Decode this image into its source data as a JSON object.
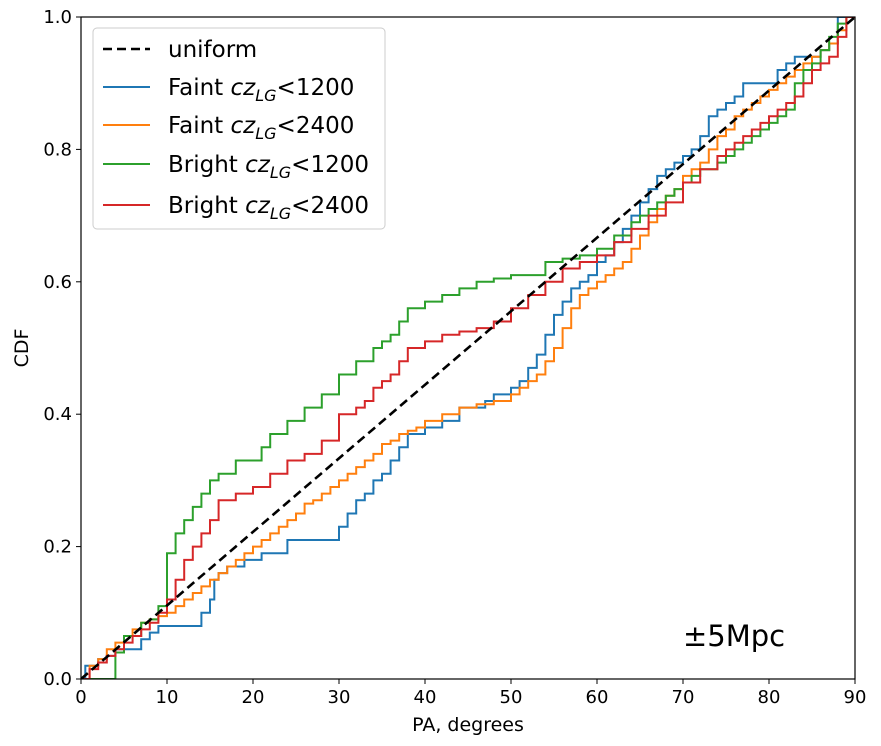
{
  "chart_data": {
    "type": "line",
    "step": true,
    "xlabel": "PA, degrees",
    "ylabel": "CDF",
    "xlim": [
      0,
      90
    ],
    "ylim": [
      0,
      1
    ],
    "xticks": [
      "0",
      "10",
      "20",
      "30",
      "40",
      "50",
      "60",
      "70",
      "80",
      "90"
    ],
    "yticks": [
      "0.0",
      "0.2",
      "0.4",
      "0.6",
      "0.8",
      "1.0"
    ],
    "grid": false,
    "legend_position": "top-left",
    "annotation": "±5Mpc",
    "reference": {
      "name": "uniform",
      "color": "#000000",
      "dashed": true,
      "x": [
        0,
        90
      ],
      "y": [
        0,
        1
      ]
    },
    "series": [
      {
        "name_prefix": "Faint ",
        "name_var": "cz",
        "name_sub": "LG",
        "name_suffix": "<1200",
        "color": "#1f77b4",
        "x": [
          0,
          0.5,
          1,
          2,
          3,
          4,
          5,
          7,
          8,
          9,
          10,
          11,
          12,
          13,
          14,
          15,
          15.5,
          16,
          17,
          19,
          21,
          24,
          25,
          28,
          30,
          31,
          32,
          33,
          34,
          35,
          36,
          37,
          38,
          40,
          42,
          44,
          47,
          48,
          50,
          51,
          52,
          53,
          54,
          55,
          56,
          57,
          58,
          59,
          60,
          61,
          62,
          63,
          64,
          65,
          66,
          67,
          68,
          69,
          70,
          71,
          72,
          73,
          74,
          75,
          76,
          77,
          78,
          79,
          80,
          81,
          82,
          83,
          84,
          86,
          87,
          88,
          89
        ],
        "y": [
          0,
          0.02,
          0.02,
          0.03,
          0.035,
          0.045,
          0.045,
          0.06,
          0.07,
          0.08,
          0.08,
          0.08,
          0.08,
          0.08,
          0.1,
          0.12,
          0.15,
          0.16,
          0.17,
          0.18,
          0.19,
          0.21,
          0.21,
          0.21,
          0.23,
          0.25,
          0.27,
          0.28,
          0.3,
          0.31,
          0.33,
          0.35,
          0.37,
          0.38,
          0.39,
          0.41,
          0.42,
          0.43,
          0.44,
          0.45,
          0.47,
          0.49,
          0.52,
          0.55,
          0.57,
          0.59,
          0.6,
          0.61,
          0.63,
          0.64,
          0.66,
          0.68,
          0.7,
          0.72,
          0.74,
          0.76,
          0.77,
          0.78,
          0.79,
          0.8,
          0.82,
          0.85,
          0.86,
          0.87,
          0.88,
          0.9,
          0.9,
          0.9,
          0.9,
          0.92,
          0.93,
          0.94,
          0.94,
          0.95,
          0.96,
          1.0,
          1.0
        ]
      },
      {
        "name_prefix": "Faint ",
        "name_var": "cz",
        "name_sub": "LG",
        "name_suffix": "<2400",
        "color": "#ff7f0e",
        "x": [
          0,
          1,
          2,
          3,
          4,
          5,
          6,
          7,
          8,
          9,
          10,
          11,
          12,
          13,
          14,
          15,
          16,
          17,
          18,
          19,
          20,
          21,
          22,
          23,
          24,
          25,
          26,
          27,
          28,
          29,
          30,
          31,
          32,
          33,
          34,
          35,
          36,
          37,
          38,
          39,
          40,
          42,
          44,
          46,
          48,
          50,
          51,
          52,
          53,
          54,
          55,
          56,
          57,
          58,
          59,
          60,
          61,
          62,
          63,
          64,
          65,
          66,
          67,
          68,
          69,
          70,
          71,
          72,
          73,
          74,
          75,
          76,
          77,
          78,
          79,
          80,
          81,
          82,
          83,
          84,
          85,
          86,
          87,
          88,
          89
        ],
        "y": [
          0,
          0.02,
          0.03,
          0.045,
          0.055,
          0.065,
          0.075,
          0.085,
          0.09,
          0.095,
          0.1,
          0.11,
          0.12,
          0.13,
          0.14,
          0.15,
          0.16,
          0.17,
          0.18,
          0.19,
          0.2,
          0.21,
          0.22,
          0.23,
          0.24,
          0.25,
          0.265,
          0.27,
          0.28,
          0.29,
          0.3,
          0.31,
          0.32,
          0.33,
          0.34,
          0.355,
          0.36,
          0.37,
          0.375,
          0.38,
          0.39,
          0.4,
          0.41,
          0.415,
          0.42,
          0.43,
          0.44,
          0.45,
          0.46,
          0.48,
          0.5,
          0.53,
          0.56,
          0.58,
          0.59,
          0.6,
          0.61,
          0.62,
          0.63,
          0.65,
          0.67,
          0.69,
          0.71,
          0.73,
          0.74,
          0.76,
          0.77,
          0.78,
          0.8,
          0.82,
          0.83,
          0.85,
          0.86,
          0.87,
          0.88,
          0.89,
          0.9,
          0.91,
          0.92,
          0.93,
          0.94,
          0.95,
          0.96,
          0.98,
          1.0
        ]
      },
      {
        "name_prefix": "Bright ",
        "name_var": "cz",
        "name_sub": "LG",
        "name_suffix": "<1200",
        "color": "#2ca02c",
        "x": [
          0,
          1,
          2,
          3,
          4,
          5,
          6,
          7,
          8,
          9,
          10,
          11,
          12,
          13,
          14,
          15,
          16,
          18,
          20,
          21,
          22,
          24,
          26,
          28,
          30,
          32,
          34,
          35,
          36,
          37,
          38,
          40,
          42,
          44,
          46,
          48,
          50,
          52,
          54,
          56,
          58,
          60,
          62,
          64,
          65,
          66,
          67,
          68,
          69,
          70,
          71,
          72,
          73,
          74,
          75,
          76,
          77,
          78,
          79,
          80,
          81,
          82,
          83,
          84,
          85,
          86,
          87,
          88,
          89
        ],
        "y": [
          0,
          0,
          0,
          0,
          0.04,
          0.065,
          0.065,
          0.085,
          0.09,
          0.11,
          0.19,
          0.22,
          0.24,
          0.26,
          0.28,
          0.3,
          0.31,
          0.33,
          0.33,
          0.35,
          0.37,
          0.39,
          0.41,
          0.43,
          0.46,
          0.48,
          0.5,
          0.51,
          0.52,
          0.54,
          0.56,
          0.57,
          0.58,
          0.59,
          0.6,
          0.605,
          0.61,
          0.61,
          0.63,
          0.635,
          0.64,
          0.65,
          0.67,
          0.69,
          0.7,
          0.71,
          0.72,
          0.73,
          0.74,
          0.75,
          0.76,
          0.77,
          0.77,
          0.78,
          0.79,
          0.8,
          0.81,
          0.82,
          0.83,
          0.84,
          0.85,
          0.86,
          0.9,
          0.92,
          0.93,
          0.95,
          0.97,
          0.99,
          1.0
        ]
      },
      {
        "name_prefix": "Bright ",
        "name_var": "cz",
        "name_sub": "LG",
        "name_suffix": "<2400",
        "color": "#d62728",
        "x": [
          0,
          1,
          2,
          3,
          4,
          5,
          6,
          7,
          8,
          9,
          10,
          11,
          12,
          13,
          14,
          15,
          16,
          18,
          20,
          22,
          24,
          26,
          28,
          30,
          32,
          33,
          34,
          35,
          36,
          37,
          38,
          40,
          42,
          44,
          46,
          48,
          50,
          52,
          54,
          56,
          58,
          60,
          62,
          64,
          66,
          68,
          70,
          72,
          74,
          75,
          76,
          77,
          78,
          79,
          80,
          81,
          82,
          83,
          84,
          85,
          86,
          87,
          88,
          89
        ],
        "y": [
          0,
          0.015,
          0.025,
          0.035,
          0.045,
          0.055,
          0.065,
          0.075,
          0.085,
          0.1,
          0.12,
          0.15,
          0.18,
          0.2,
          0.22,
          0.24,
          0.27,
          0.28,
          0.29,
          0.31,
          0.33,
          0.34,
          0.36,
          0.4,
          0.41,
          0.42,
          0.44,
          0.45,
          0.46,
          0.48,
          0.5,
          0.51,
          0.52,
          0.525,
          0.53,
          0.54,
          0.56,
          0.58,
          0.6,
          0.62,
          0.63,
          0.64,
          0.66,
          0.68,
          0.7,
          0.72,
          0.75,
          0.77,
          0.79,
          0.8,
          0.81,
          0.82,
          0.83,
          0.84,
          0.85,
          0.86,
          0.87,
          0.88,
          0.9,
          0.92,
          0.93,
          0.94,
          0.97,
          1.0
        ]
      }
    ]
  }
}
